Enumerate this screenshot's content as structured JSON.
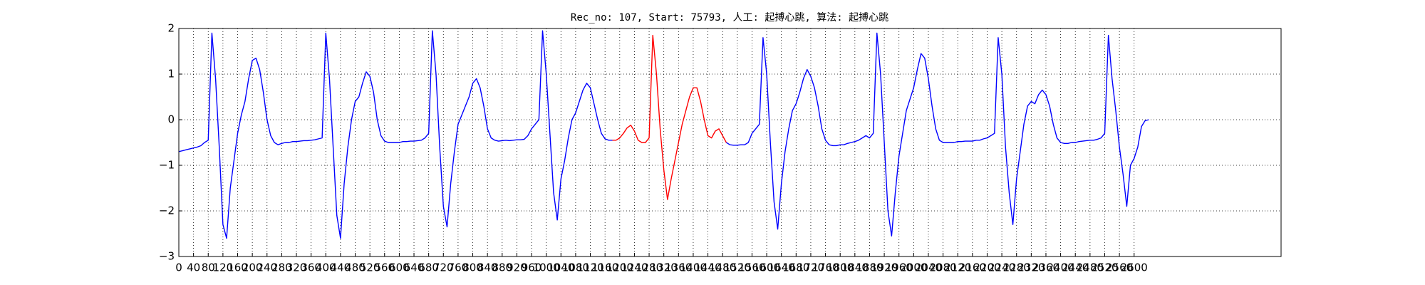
{
  "chart_data": {
    "type": "line",
    "title": "Rec_no: 107, Start: 75793, 人工: 起搏心跳, 算法: 起搏心跳",
    "x": [
      0,
      10,
      20,
      30,
      40,
      50,
      60,
      70,
      80,
      90,
      100,
      110,
      120,
      130,
      140,
      150,
      160,
      170,
      180,
      190,
      200,
      210,
      220,
      230,
      240,
      250,
      260,
      270,
      280,
      290,
      300,
      310,
      320,
      330,
      340,
      350,
      360,
      370,
      380,
      390,
      400,
      410,
      420,
      430,
      440,
      450,
      460,
      470,
      480,
      490,
      500,
      510,
      520,
      530,
      540,
      550,
      560,
      570,
      580,
      590,
      600,
      610,
      620,
      630,
      640,
      650,
      660,
      670,
      680,
      690,
      700,
      710,
      720,
      730,
      740,
      750,
      760,
      770,
      780,
      790,
      800,
      810,
      820,
      830,
      840,
      850,
      860,
      870,
      880,
      890,
      900,
      910,
      920,
      930,
      940,
      950,
      960,
      970,
      980,
      990,
      1000,
      1010,
      1020,
      1030,
      1040,
      1050,
      1060,
      1070,
      1080,
      1090,
      1100,
      1110,
      1120,
      1130,
      1140,
      1150,
      1160,
      1170,
      1180,
      1190,
      1200,
      1210,
      1220,
      1230,
      1240,
      1250,
      1260,
      1270,
      1280,
      1290,
      1300,
      1310,
      1320,
      1330,
      1340,
      1350,
      1360,
      1370,
      1380,
      1390,
      1400,
      1410,
      1420,
      1430,
      1440,
      1450,
      1460,
      1470,
      1480,
      1490,
      1500,
      1510,
      1520,
      1530,
      1540,
      1550,
      1560,
      1570,
      1580,
      1590,
      1600,
      1610,
      1620,
      1630,
      1640,
      1650,
      1660,
      1670,
      1680,
      1690,
      1700,
      1710,
      1720,
      1730,
      1740,
      1750,
      1760,
      1770,
      1780,
      1790,
      1800,
      1810,
      1820,
      1830,
      1840,
      1850,
      1860,
      1870,
      1880,
      1890,
      1900,
      1910,
      1920,
      1930,
      1940,
      1950,
      1960,
      1970,
      1980,
      1990,
      2000,
      2010,
      2020,
      2030,
      2040,
      2050,
      2060,
      2070,
      2080,
      2090,
      2100,
      2110,
      2120,
      2130,
      2140,
      2150,
      2160,
      2170,
      2180,
      2190,
      2200,
      2210,
      2220,
      2230,
      2240,
      2250,
      2260,
      2270,
      2280,
      2290,
      2300,
      2310,
      2320,
      2330,
      2340,
      2350,
      2360,
      2370,
      2380,
      2390,
      2400,
      2410,
      2420,
      2430,
      2440,
      2450,
      2460,
      2470,
      2480,
      2490,
      2500,
      2510,
      2520,
      2530,
      2540,
      2550,
      2560,
      2570,
      2580,
      2590,
      2600,
      2610,
      2620,
      2630,
      2640
    ],
    "series": [
      {
        "color": "#0000ff",
        "values": [
          -0.7,
          -0.68,
          -0.66,
          -0.64,
          -0.62,
          -0.6,
          -0.57,
          -0.5,
          -0.45,
          1.9,
          0.9,
          -0.6,
          -2.3,
          -2.6,
          -1.5,
          -0.9,
          -0.3,
          0.1,
          0.4,
          0.9,
          1.3,
          1.35,
          1.1,
          0.6,
          0.0,
          -0.35,
          -0.5,
          -0.55,
          -0.52,
          -0.5,
          -0.5,
          -0.48,
          -0.48,
          -0.47,
          -0.46,
          -0.46,
          -0.45,
          -0.44,
          -0.42,
          -0.4,
          1.9,
          0.9,
          -0.6,
          -2.1,
          -2.6,
          -1.4,
          -0.6,
          0.0,
          0.4,
          0.5,
          0.8,
          1.05,
          0.95,
          0.6,
          0.0,
          -0.35,
          -0.47,
          -0.5,
          -0.5,
          -0.5,
          -0.5,
          -0.48,
          -0.48,
          -0.47,
          -0.47,
          -0.46,
          -0.45,
          -0.4,
          -0.3,
          1.95,
          1.0,
          -0.6,
          -1.9,
          -2.35,
          -1.4,
          -0.7,
          -0.1,
          0.1,
          0.3,
          0.5,
          0.8,
          0.9,
          0.7,
          0.3,
          -0.2,
          -0.4,
          -0.45,
          -0.47,
          -0.46,
          -0.45,
          -0.46,
          -0.45,
          -0.44,
          -0.44,
          -0.43,
          -0.35,
          -0.2,
          -0.1,
          0.0,
          1.95,
          1.0,
          -0.3,
          -1.6,
          -2.2,
          -1.3,
          -0.9,
          -0.4,
          0.0,
          0.15,
          0.4,
          0.65,
          0.8,
          0.7,
          0.35,
          0.0,
          -0.3,
          -0.42,
          -0.45,
          -0.45,
          null,
          null,
          null,
          null,
          null,
          null,
          null,
          null,
          null,
          null,
          null,
          null,
          null,
          null,
          null,
          null,
          null,
          null,
          null,
          null,
          null,
          null,
          null,
          null,
          null,
          null,
          null,
          null,
          null,
          null,
          -0.5,
          -0.55,
          -0.56,
          -0.56,
          -0.55,
          -0.55,
          -0.5,
          -0.3,
          -0.2,
          -0.1,
          1.8,
          1.0,
          -0.5,
          -1.8,
          -2.4,
          -1.4,
          -0.7,
          -0.2,
          0.2,
          0.35,
          0.6,
          0.9,
          1.1,
          0.95,
          0.7,
          0.3,
          -0.2,
          -0.45,
          -0.55,
          -0.57,
          -0.57,
          -0.55,
          -0.55,
          -0.52,
          -0.5,
          -0.48,
          -0.45,
          -0.4,
          -0.35,
          -0.4,
          -0.3,
          1.9,
          1.0,
          -0.5,
          -2.0,
          -2.55,
          -1.6,
          -0.8,
          -0.3,
          0.2,
          0.45,
          0.7,
          1.1,
          1.45,
          1.35,
          0.9,
          0.3,
          -0.2,
          -0.45,
          -0.5,
          -0.5,
          -0.5,
          -0.5,
          -0.48,
          -0.48,
          -0.47,
          -0.47,
          -0.47,
          -0.45,
          -0.45,
          -0.42,
          -0.4,
          -0.35,
          -0.3,
          1.8,
          1.0,
          -0.6,
          -1.6,
          -2.3,
          -1.3,
          -0.7,
          -0.1,
          0.3,
          0.4,
          0.35,
          0.55,
          0.65,
          0.55,
          0.3,
          -0.1,
          -0.4,
          -0.5,
          -0.52,
          -0.52,
          -0.5,
          -0.5,
          -0.48,
          -0.47,
          -0.46,
          -0.45,
          -0.45,
          -0.43,
          -0.4,
          -0.3,
          1.85,
          0.9,
          0.2,
          -0.6,
          -1.2,
          -1.9,
          -1.0,
          -0.85,
          -0.6,
          -0.15,
          -0.02,
          0.0
        ]
      },
      {
        "color": "#ff0000",
        "values": [
          null,
          null,
          null,
          null,
          null,
          null,
          null,
          null,
          null,
          null,
          null,
          null,
          null,
          null,
          null,
          null,
          null,
          null,
          null,
          null,
          null,
          null,
          null,
          null,
          null,
          null,
          null,
          null,
          null,
          null,
          null,
          null,
          null,
          null,
          null,
          null,
          null,
          null,
          null,
          null,
          null,
          null,
          null,
          null,
          null,
          null,
          null,
          null,
          null,
          null,
          null,
          null,
          null,
          null,
          null,
          null,
          null,
          null,
          null,
          null,
          null,
          null,
          null,
          null,
          null,
          null,
          null,
          null,
          null,
          null,
          null,
          null,
          null,
          null,
          null,
          null,
          null,
          null,
          null,
          null,
          null,
          null,
          null,
          null,
          null,
          null,
          null,
          null,
          null,
          null,
          null,
          null,
          null,
          null,
          null,
          null,
          null,
          null,
          null,
          null,
          null,
          null,
          null,
          null,
          null,
          null,
          null,
          null,
          null,
          null,
          null,
          null,
          null,
          null,
          null,
          null,
          null,
          null,
          -0.45,
          -0.45,
          -0.4,
          -0.3,
          -0.18,
          -0.12,
          -0.25,
          -0.45,
          -0.5,
          -0.5,
          -0.4,
          1.85,
          1.0,
          -0.2,
          -1.1,
          -1.75,
          -1.3,
          -0.9,
          -0.5,
          -0.1,
          0.2,
          0.5,
          0.7,
          0.7,
          0.4,
          0.0,
          -0.35,
          -0.4,
          -0.25,
          -0.2,
          -0.35,
          -0.5,
          null,
          null,
          null,
          null,
          null,
          null,
          null,
          null,
          null,
          null,
          null,
          null,
          null,
          null,
          null,
          null,
          null,
          null,
          null,
          null,
          null,
          null,
          null,
          null,
          null,
          null,
          null,
          null,
          null,
          null,
          null,
          null,
          null,
          null,
          null,
          null,
          null,
          null,
          null,
          null,
          null,
          null,
          null,
          null,
          null,
          null,
          null,
          null,
          null,
          null,
          null,
          null,
          null,
          null,
          null,
          null,
          null,
          null,
          null,
          null,
          null,
          null,
          null,
          null,
          null,
          null,
          null,
          null,
          null,
          null,
          null,
          null,
          null,
          null,
          null,
          null,
          null,
          null,
          null,
          null,
          null,
          null,
          null,
          null,
          null,
          null,
          null,
          null,
          null,
          null,
          null,
          null,
          null,
          null,
          null,
          null,
          null,
          null,
          null,
          null,
          null,
          null,
          null,
          null,
          null,
          null,
          null,
          null,
          null,
          null,
          null,
          null,
          null,
          null,
          null
        ]
      }
    ],
    "xlim": [
      0,
      3000
    ],
    "xticks": [
      0,
      40,
      80,
      120,
      160,
      200,
      240,
      280,
      320,
      360,
      400,
      440,
      480,
      520,
      560,
      600,
      640,
      680,
      720,
      760,
      800,
      840,
      880,
      920,
      960,
      1000,
      1040,
      1080,
      1120,
      1160,
      1200,
      1240,
      1280,
      1320,
      1360,
      1400,
      1440,
      1480,
      1520,
      1560,
      1600,
      1640,
      1680,
      1720,
      1760,
      1800,
      1840,
      1880,
      1920,
      1960,
      2000,
      2040,
      2080,
      2120,
      2160,
      2200,
      2240,
      2280,
      2320,
      2360,
      2400,
      2440,
      2480,
      2520,
      2560,
      2600
    ],
    "ylim": [
      -3,
      2
    ],
    "yticks": [
      {
        "value": -3,
        "label": "−3"
      },
      {
        "value": -2,
        "label": "−2"
      },
      {
        "value": -1,
        "label": "−1"
      },
      0,
      1,
      2
    ],
    "grid": true
  }
}
